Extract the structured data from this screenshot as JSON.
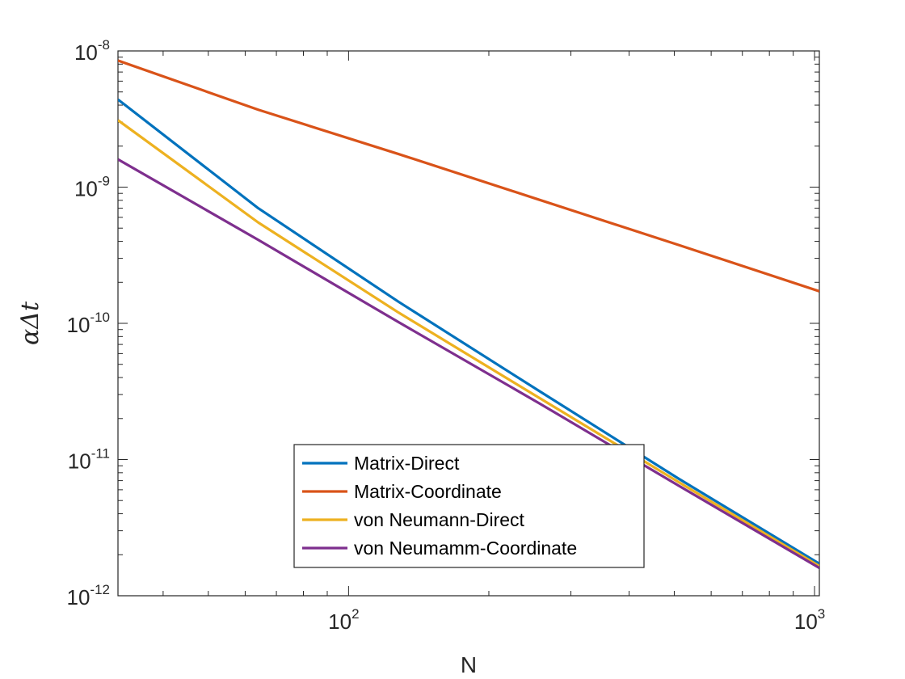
{
  "chart_data": {
    "type": "line",
    "xscale": "log",
    "yscale": "log",
    "xlim": [
      32,
      1024
    ],
    "ylim": [
      1e-12,
      1e-08
    ],
    "xlabel": "N",
    "ylabel": "αΔt",
    "grid": false,
    "legend_position": "bottom-center",
    "x_ticks": [
      {
        "base": "10",
        "exp": "2",
        "value": 100
      },
      {
        "base": "10",
        "exp": "3",
        "value": 1000
      }
    ],
    "y_ticks": [
      {
        "base": "10",
        "exp": "-8",
        "value": 1e-08
      },
      {
        "base": "10",
        "exp": "-9",
        "value": 1e-09
      },
      {
        "base": "10",
        "exp": "-10",
        "value": 1e-10
      },
      {
        "base": "10",
        "exp": "-11",
        "value": 1e-11
      },
      {
        "base": "10",
        "exp": "-12",
        "value": 1e-12
      }
    ],
    "x": [
      32,
      64,
      128,
      256,
      512,
      1024
    ],
    "series": [
      {
        "name": "Matrix-Direct",
        "color": "#0072BD",
        "values": [
          4.4e-09,
          7e-10,
          1.44e-10,
          3.2e-11,
          7.2e-12,
          1.72e-12
        ]
      },
      {
        "name": "Matrix-Coordinate",
        "color": "#D95319",
        "values": [
          8.5e-09,
          3.7e-09,
          1.75e-09,
          8.1e-10,
          3.75e-10,
          1.72e-10
        ]
      },
      {
        "name": "von Neumann-Direct",
        "color": "#EDB120",
        "values": [
          3.1e-09,
          5.5e-10,
          1.2e-10,
          2.85e-11,
          6.8e-12,
          1.65e-12
        ]
      },
      {
        "name": "von Neumamm-Coordinate",
        "color": "#7E2F8E",
        "values": [
          1.6e-09,
          4.1e-10,
          1.02e-10,
          2.6e-11,
          6.4e-12,
          1.6e-12
        ]
      }
    ]
  }
}
